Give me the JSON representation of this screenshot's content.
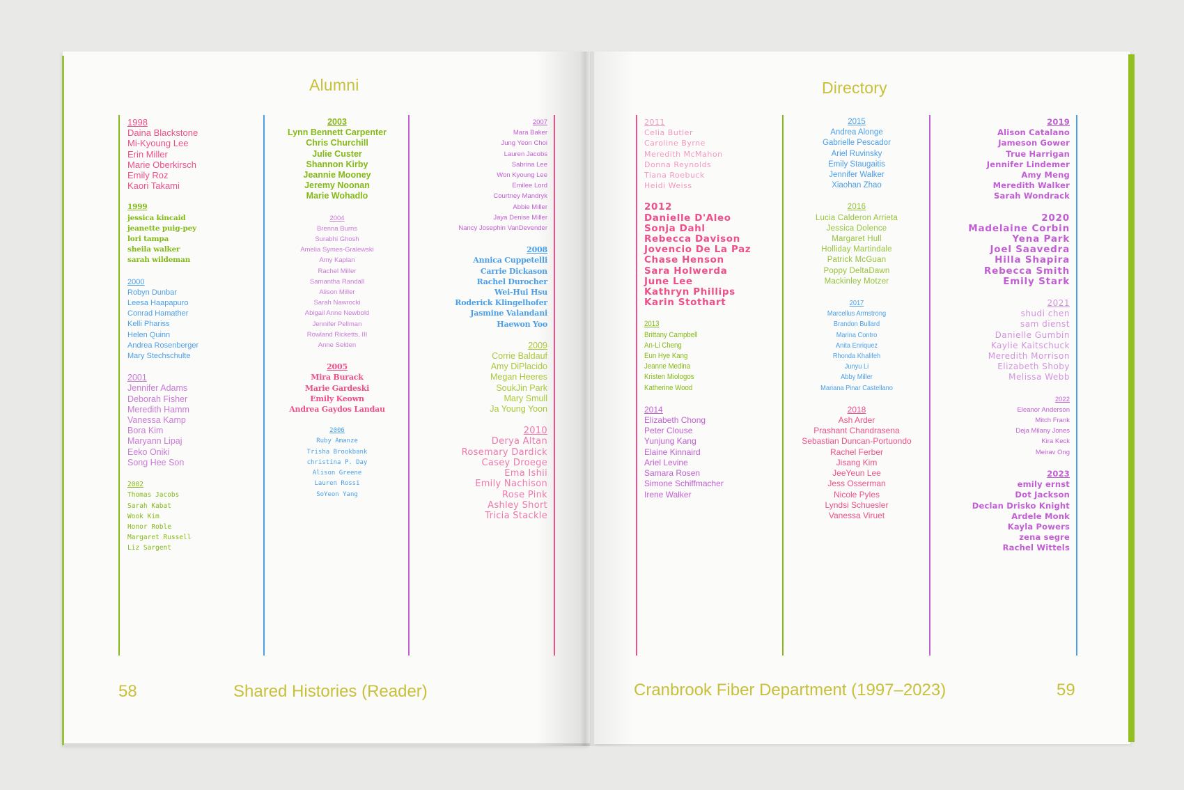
{
  "colors": {
    "pink": "#ee4f8a",
    "green": "#84b918",
    "blue": "#4a9fe8",
    "violet": "#c15ed3",
    "header": "#c8c03a"
  },
  "left_page": {
    "header": "Alumni",
    "page_number": "58",
    "footer_title": "Shared Histories (Reader)"
  },
  "right_page": {
    "header": "Directory",
    "page_number": "59",
    "footer_title": "Cranbrook Fiber Department (1997–2023)"
  },
  "columns": [
    {
      "groups": [
        {
          "year": "1998",
          "names": [
            "Daina Blackstone",
            "Mi-Kyoung Lee",
            "Erin Miller",
            "Marie Oberkirsch",
            "Emily Roz",
            "Kaori Takami"
          ]
        },
        {
          "year": "1999",
          "names": [
            "jessica kincaid",
            "jeanette puig-pey",
            "lori tampa",
            "sheila walker",
            "sarah wildeman"
          ]
        },
        {
          "year": "2000",
          "names": [
            "Robyn Dunbar",
            "Leesa Haapapuro",
            "Conrad Hamather",
            "Kelli Phariss",
            "Helen Quinn",
            "Andrea Rosenberger",
            "Mary Stechschulte"
          ]
        },
        {
          "year": "2001",
          "names": [
            "Jennifer Adams",
            "Deborah Fisher",
            "Meredith Hamm",
            "Vanessa Kamp",
            "Bora Kim",
            "Maryann Lipaj",
            "Eeko Oniki",
            "Song Hee Son"
          ]
        },
        {
          "year": "2002",
          "names": [
            "Thomas Jacobs",
            "Sarah Kabat",
            "Wook Kim",
            "Honor Roble",
            "Margaret Russell",
            "Liz Sargent"
          ]
        }
      ]
    },
    {
      "groups": [
        {
          "year": "2003",
          "names": [
            "Lynn Bennett Carpenter",
            "Chris Churchill",
            "Julie Custer",
            "Shannon Kirby",
            "Jeannie Mooney",
            "Jeremy Noonan",
            "Marie Wohadlo"
          ]
        },
        {
          "year": "2004",
          "names": [
            "Brenna Burns",
            "Surabhi Ghosh",
            "Amelia Symes-Gralewski",
            "Amy Kaplan",
            "Rachel Miller",
            "Samantha Randall",
            "Alison Miller",
            "Sarah Nawrocki",
            "Abigail Anne Newbold",
            "Jennifer Pellman",
            "Rowland Ricketts, III",
            "Anne Selden"
          ]
        },
        {
          "year": "2005",
          "names": [
            "Mira Burack",
            "Marie Gardeski",
            "Emily Keown",
            "Andrea Gaydos Landau"
          ]
        },
        {
          "year": "2006",
          "names": [
            "Ruby Amanze",
            "Trisha Brookbank",
            "christina P. Day",
            "Alison Greene",
            "Lauren Rossi",
            "SoYeon Yang"
          ]
        }
      ]
    },
    {
      "groups": [
        {
          "year": "2007",
          "names": [
            "Mara Baker",
            "Jung Yeon Choi",
            "Lauren Jacobs",
            "Sabrina Lee",
            "Won Kyoung Lee",
            "Emilee Lord",
            "Courtney Mandryk",
            "Abbie Miller",
            "Jaya Denise Miller",
            "Nancy Josephin VanDevender"
          ]
        },
        {
          "year": "2008",
          "names": [
            "Annica Cuppetelli",
            "Carrie Dickason",
            "Rachel Durocher",
            "Wei-Hui Hsu",
            "Roderick Klingelhofer",
            "Jasmine Valandani",
            "Haewon Yoo"
          ]
        },
        {
          "year": "2009",
          "names": [
            "Corrie Baldauf",
            "Amy DiPlacido",
            "Megan Heeres",
            "SoukJin Park",
            "Mary Smull",
            "Ja Young Yoon"
          ]
        },
        {
          "year": "2010",
          "names": [
            "Derya Altan",
            "Rosemary Dardick",
            "Casey Droege",
            "Ema Ishii",
            "Emily Nachison",
            "Rose Pink",
            "Ashley Short",
            "Tricia Stackle"
          ]
        }
      ]
    },
    {
      "groups": [
        {
          "year": "2011",
          "names": [
            "Celia Butler",
            "Caroline Byrne",
            "Meredith McMahon",
            "Donna Reynolds",
            "Tiana Roebuck",
            "Heidi Weiss"
          ]
        },
        {
          "year": "2012",
          "names": [
            "Danielle D'Aleo",
            "Sonja Dahl",
            "Rebecca Davison",
            "Jovencio De La Paz",
            "Chase Henson",
            "Sara Holwerda",
            "June Lee",
            "Kathryn Phillips",
            "Karin Stothart"
          ]
        },
        {
          "year": "2013",
          "names": [
            "Brittany Campbell",
            "An-Li Cheng",
            "Eun Hye Kang",
            "Jeanne Medina",
            "Kristen Miologos",
            "Katherine Wood"
          ]
        },
        {
          "year": "2014",
          "names": [
            "Elizabeth Chong",
            "Peter Clouse",
            "Yunjung Kang",
            "Elaine Kinnaird",
            "Ariel Levine",
            "Samara Rosen",
            "Simone Schiffmacher",
            "Irene Walker"
          ]
        }
      ]
    },
    {
      "groups": [
        {
          "year": "2015",
          "names": [
            "Andrea Alonge",
            "Gabrielle Pescador",
            "Ariel Ruvinsky",
            "Emily Staugaitis",
            "Jennifer Walker",
            "Xiaohan Zhao"
          ]
        },
        {
          "year": "2016",
          "names": [
            "Lucia Calderon Arrieta",
            "Jessica Dolence",
            "Margaret Hull",
            "Holliday Martindale",
            "Patrick McGuan",
            "Poppy DeltaDawn",
            "Mackinley Motzer"
          ]
        },
        {
          "year": "2017",
          "names": [
            "Marcellus Armstrong",
            "Brandon Bullard",
            "Marina Contro",
            "Anita Enriquez",
            "Rhonda Khalifeh",
            "Junyu Li",
            "Abby Miller",
            "Mariana Pinar Castellano"
          ]
        },
        {
          "year": "2018",
          "names": [
            "Ash Arder",
            "Prashant Chandrasena",
            "Sebastian Duncan-Portuondo",
            "Rachel Ferber",
            "Jisang Kim",
            "JeeYeun Lee",
            "Jess Osserman",
            "Nicole Pyles",
            "Lyndsi Schuesler",
            "Vanessa Viruet"
          ]
        }
      ]
    },
    {
      "groups": [
        {
          "year": "2019",
          "names": [
            "Alison Catalano",
            "Jameson Gower",
            "True Harrigan",
            "Jennifer Lindemer",
            "Amy Meng",
            "Meredith Walker",
            "Sarah Wondrack"
          ]
        },
        {
          "year": "2020",
          "names": [
            "Madelaine Corbin",
            "Yena Park",
            "Joel Saavedra",
            "Hilla Shapira",
            "Rebecca Smith",
            "Emily Stark"
          ]
        },
        {
          "year": "2021",
          "names": [
            "shudi chen",
            "sam dienst",
            "Danielle Gumbin",
            "Kaylie Kaitschuck",
            "Meredith Morrison",
            "Elizabeth Shoby",
            "Melissa Webb"
          ]
        },
        {
          "year": "2022",
          "names": [
            "Eleanor Anderson",
            "Mitch Frank",
            "Deja Milany Jones",
            "Kira Keck",
            "Meirav Ong"
          ]
        },
        {
          "year": "2023",
          "names": [
            "emily ernst",
            "Dot Jackson",
            "Declan Drisko Knight",
            "Ardele Monk",
            "Kayla Powers",
            "zena segre",
            "Rachel Wittels"
          ]
        }
      ]
    }
  ]
}
